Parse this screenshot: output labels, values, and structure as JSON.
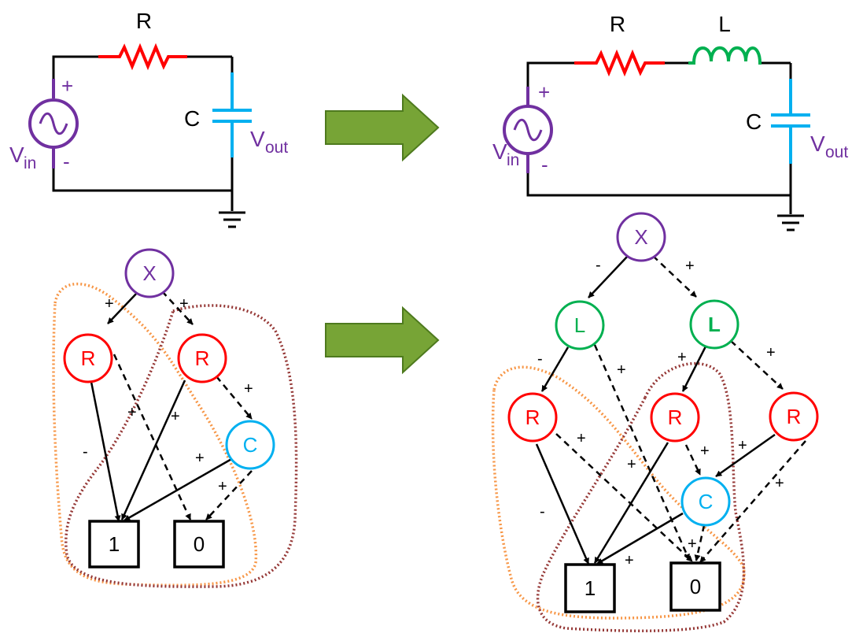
{
  "colors": {
    "purple": "#7030a0",
    "red": "#ff0000",
    "green": "#00b050",
    "cyan": "#00b0f0",
    "black": "#000000",
    "arrow_fill": "#77a436",
    "arrow_stroke": "#4e7a1e",
    "orange_outline": "#f79646",
    "maroon_outline": "#953735"
  },
  "circuit_rc": {
    "r_label": "R",
    "c_label": "C",
    "vin_main": "V",
    "vin_sub": "in",
    "vout_main": "V",
    "vout_sub": "out",
    "plus": "+",
    "minus": "-"
  },
  "circuit_rlc": {
    "r_label": "R",
    "l_label": "L",
    "c_label": "C",
    "vin_main": "V",
    "vin_sub": "in",
    "vout_main": "V",
    "vout_sub": "out",
    "plus": "+",
    "minus": "-"
  },
  "bdd_left": {
    "nodes": {
      "x": "X",
      "r1": "R",
      "r2": "R",
      "c": "C",
      "t1": "1",
      "t0": "0"
    },
    "edges": [
      "+",
      "+",
      "-",
      "+",
      "+",
      "+",
      "+",
      "+"
    ]
  },
  "bdd_right": {
    "nodes": {
      "x": "X",
      "l1": "L",
      "l2": "L",
      "r1": "R",
      "r2": "R",
      "r3": "R",
      "c": "C",
      "t1": "1",
      "t0": "0"
    },
    "edges": [
      "-",
      "+",
      "-",
      "+",
      "+",
      "+",
      "-",
      "+",
      "+",
      "+",
      "+",
      "+",
      "+",
      "+"
    ]
  }
}
